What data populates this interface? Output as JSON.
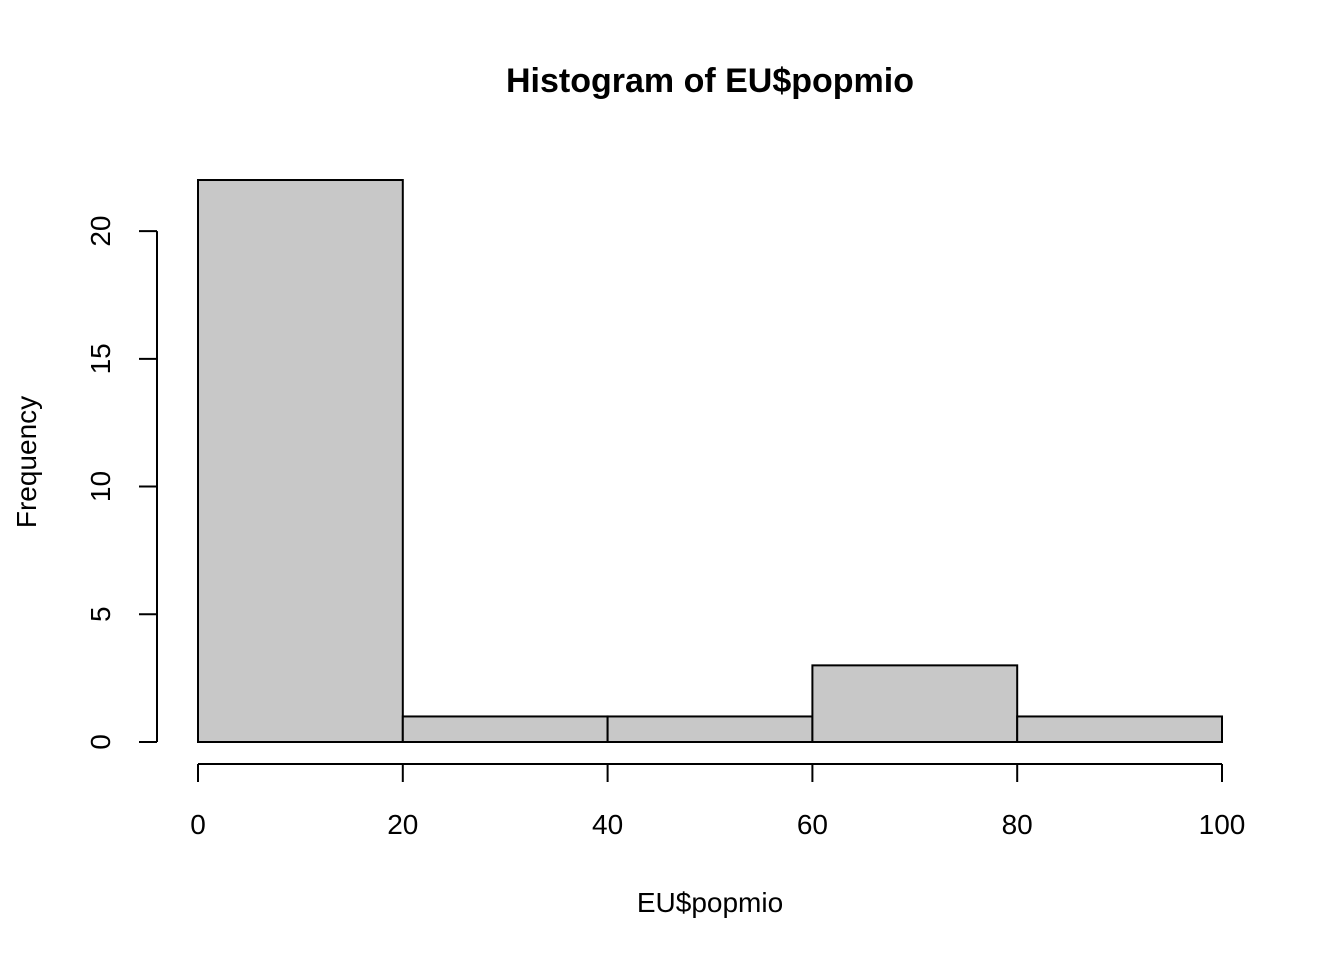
{
  "chart_data": {
    "type": "bar",
    "title": "Histogram of EU$popmio",
    "xlabel": "EU$popmio",
    "ylabel": "Frequency",
    "bins": [
      {
        "start": 0,
        "end": 20,
        "count": 22
      },
      {
        "start": 20,
        "end": 40,
        "count": 1
      },
      {
        "start": 40,
        "end": 60,
        "count": 1
      },
      {
        "start": 60,
        "end": 80,
        "count": 3
      },
      {
        "start": 80,
        "end": 100,
        "count": 1
      }
    ],
    "x_ticks": [
      0,
      20,
      40,
      60,
      80,
      100
    ],
    "y_ticks": [
      0,
      5,
      10,
      15,
      20
    ],
    "xlim": [
      0,
      100
    ],
    "ylim": [
      0,
      22
    ],
    "grid": false,
    "bar_color": "#c8c8c8",
    "edge_color": "#000000"
  }
}
